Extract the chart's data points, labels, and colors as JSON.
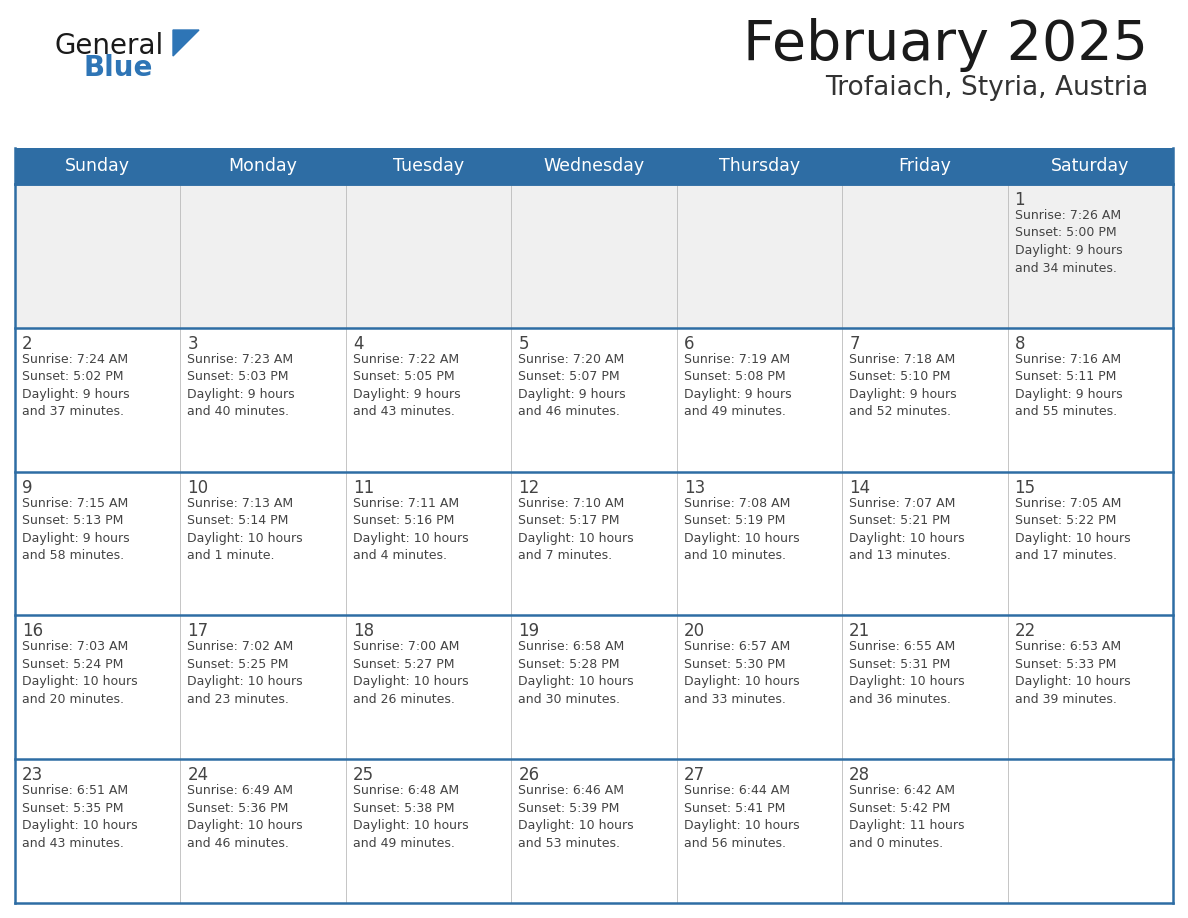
{
  "title": "February 2025",
  "subtitle": "Trofaiach, Styria, Austria",
  "header_bg": "#2E6DA4",
  "header_text_color": "#FFFFFF",
  "cell_bg_light": "#F0F0F0",
  "cell_bg_white": "#FFFFFF",
  "border_color": "#2E6DA4",
  "text_color": "#444444",
  "days_of_week": [
    "Sunday",
    "Monday",
    "Tuesday",
    "Wednesday",
    "Thursday",
    "Friday",
    "Saturday"
  ],
  "logo_general_color": "#1a1a1a",
  "logo_blue_color": "#2E75B6",
  "title_color": "#1a1a1a",
  "subtitle_color": "#333333",
  "calendar_data": [
    [
      {
        "day": null,
        "info": null
      },
      {
        "day": null,
        "info": null
      },
      {
        "day": null,
        "info": null
      },
      {
        "day": null,
        "info": null
      },
      {
        "day": null,
        "info": null
      },
      {
        "day": null,
        "info": null
      },
      {
        "day": 1,
        "info": "Sunrise: 7:26 AM\nSunset: 5:00 PM\nDaylight: 9 hours\nand 34 minutes."
      }
    ],
    [
      {
        "day": 2,
        "info": "Sunrise: 7:24 AM\nSunset: 5:02 PM\nDaylight: 9 hours\nand 37 minutes."
      },
      {
        "day": 3,
        "info": "Sunrise: 7:23 AM\nSunset: 5:03 PM\nDaylight: 9 hours\nand 40 minutes."
      },
      {
        "day": 4,
        "info": "Sunrise: 7:22 AM\nSunset: 5:05 PM\nDaylight: 9 hours\nand 43 minutes."
      },
      {
        "day": 5,
        "info": "Sunrise: 7:20 AM\nSunset: 5:07 PM\nDaylight: 9 hours\nand 46 minutes."
      },
      {
        "day": 6,
        "info": "Sunrise: 7:19 AM\nSunset: 5:08 PM\nDaylight: 9 hours\nand 49 minutes."
      },
      {
        "day": 7,
        "info": "Sunrise: 7:18 AM\nSunset: 5:10 PM\nDaylight: 9 hours\nand 52 minutes."
      },
      {
        "day": 8,
        "info": "Sunrise: 7:16 AM\nSunset: 5:11 PM\nDaylight: 9 hours\nand 55 minutes."
      }
    ],
    [
      {
        "day": 9,
        "info": "Sunrise: 7:15 AM\nSunset: 5:13 PM\nDaylight: 9 hours\nand 58 minutes."
      },
      {
        "day": 10,
        "info": "Sunrise: 7:13 AM\nSunset: 5:14 PM\nDaylight: 10 hours\nand 1 minute."
      },
      {
        "day": 11,
        "info": "Sunrise: 7:11 AM\nSunset: 5:16 PM\nDaylight: 10 hours\nand 4 minutes."
      },
      {
        "day": 12,
        "info": "Sunrise: 7:10 AM\nSunset: 5:17 PM\nDaylight: 10 hours\nand 7 minutes."
      },
      {
        "day": 13,
        "info": "Sunrise: 7:08 AM\nSunset: 5:19 PM\nDaylight: 10 hours\nand 10 minutes."
      },
      {
        "day": 14,
        "info": "Sunrise: 7:07 AM\nSunset: 5:21 PM\nDaylight: 10 hours\nand 13 minutes."
      },
      {
        "day": 15,
        "info": "Sunrise: 7:05 AM\nSunset: 5:22 PM\nDaylight: 10 hours\nand 17 minutes."
      }
    ],
    [
      {
        "day": 16,
        "info": "Sunrise: 7:03 AM\nSunset: 5:24 PM\nDaylight: 10 hours\nand 20 minutes."
      },
      {
        "day": 17,
        "info": "Sunrise: 7:02 AM\nSunset: 5:25 PM\nDaylight: 10 hours\nand 23 minutes."
      },
      {
        "day": 18,
        "info": "Sunrise: 7:00 AM\nSunset: 5:27 PM\nDaylight: 10 hours\nand 26 minutes."
      },
      {
        "day": 19,
        "info": "Sunrise: 6:58 AM\nSunset: 5:28 PM\nDaylight: 10 hours\nand 30 minutes."
      },
      {
        "day": 20,
        "info": "Sunrise: 6:57 AM\nSunset: 5:30 PM\nDaylight: 10 hours\nand 33 minutes."
      },
      {
        "day": 21,
        "info": "Sunrise: 6:55 AM\nSunset: 5:31 PM\nDaylight: 10 hours\nand 36 minutes."
      },
      {
        "day": 22,
        "info": "Sunrise: 6:53 AM\nSunset: 5:33 PM\nDaylight: 10 hours\nand 39 minutes."
      }
    ],
    [
      {
        "day": 23,
        "info": "Sunrise: 6:51 AM\nSunset: 5:35 PM\nDaylight: 10 hours\nand 43 minutes."
      },
      {
        "day": 24,
        "info": "Sunrise: 6:49 AM\nSunset: 5:36 PM\nDaylight: 10 hours\nand 46 minutes."
      },
      {
        "day": 25,
        "info": "Sunrise: 6:48 AM\nSunset: 5:38 PM\nDaylight: 10 hours\nand 49 minutes."
      },
      {
        "day": 26,
        "info": "Sunrise: 6:46 AM\nSunset: 5:39 PM\nDaylight: 10 hours\nand 53 minutes."
      },
      {
        "day": 27,
        "info": "Sunrise: 6:44 AM\nSunset: 5:41 PM\nDaylight: 10 hours\nand 56 minutes."
      },
      {
        "day": 28,
        "info": "Sunrise: 6:42 AM\nSunset: 5:42 PM\nDaylight: 11 hours\nand 0 minutes."
      },
      {
        "day": null,
        "info": null
      }
    ]
  ]
}
